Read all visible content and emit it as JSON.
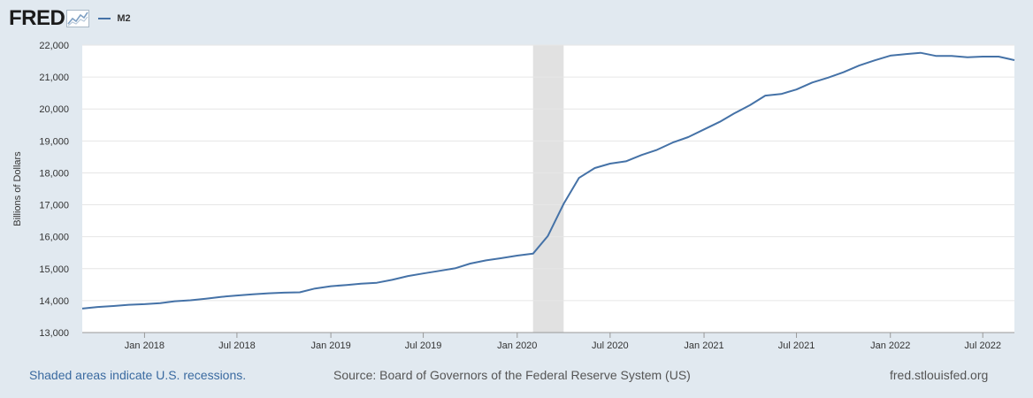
{
  "header": {
    "logo_text": "FRED",
    "brand_color": "#1b1b1b",
    "series_color": "#4572a7"
  },
  "footer": {
    "note": "Shaded areas indicate U.S. recessions.",
    "source": "Source: Board of Governors of the Federal Reserve System (US)",
    "site": "fred.stlouisfed.org"
  },
  "chart_data": {
    "type": "line",
    "ylabel": "Billions of Dollars",
    "xlabel": "",
    "ylim": [
      13000,
      22000
    ],
    "xlim": [
      "2017-09-01",
      "2022-09-01"
    ],
    "yticks": [
      13000,
      14000,
      15000,
      16000,
      17000,
      18000,
      19000,
      20000,
      21000,
      22000
    ],
    "ytick_labels": [
      "13,000",
      "14,000",
      "15,000",
      "16,000",
      "17,000",
      "18,000",
      "19,000",
      "20,000",
      "21,000",
      "22,000"
    ],
    "xticks": [
      "2018-01-01",
      "2018-07-01",
      "2019-01-01",
      "2019-07-01",
      "2020-01-01",
      "2020-07-01",
      "2021-01-01",
      "2021-07-01",
      "2022-01-01",
      "2022-07-01"
    ],
    "xtick_labels": [
      "Jan 2018",
      "Jul 2018",
      "Jan 2019",
      "Jul 2019",
      "Jan 2020",
      "Jul 2020",
      "Jan 2021",
      "Jul 2021",
      "Jan 2022",
      "Jul 2022"
    ],
    "grid": true,
    "legend": "top-left",
    "recessions": [
      {
        "start": "2020-02-01",
        "end": "2020-04-01"
      }
    ],
    "series": [
      {
        "name": "M2",
        "color": "#4572a7",
        "x": [
          "2017-09-01",
          "2017-10-01",
          "2017-11-01",
          "2017-12-01",
          "2018-01-01",
          "2018-02-01",
          "2018-03-01",
          "2018-04-01",
          "2018-05-01",
          "2018-06-01",
          "2018-07-01",
          "2018-08-01",
          "2018-09-01",
          "2018-10-01",
          "2018-11-01",
          "2018-12-01",
          "2019-01-01",
          "2019-02-01",
          "2019-03-01",
          "2019-04-01",
          "2019-05-01",
          "2019-06-01",
          "2019-07-01",
          "2019-08-01",
          "2019-09-01",
          "2019-10-01",
          "2019-11-01",
          "2019-12-01",
          "2020-01-01",
          "2020-02-01",
          "2020-03-01",
          "2020-04-01",
          "2020-05-01",
          "2020-06-01",
          "2020-07-01",
          "2020-08-01",
          "2020-09-01",
          "2020-10-01",
          "2020-11-01",
          "2020-12-01",
          "2021-01-01",
          "2021-02-01",
          "2021-03-01",
          "2021-04-01",
          "2021-05-01",
          "2021-06-01",
          "2021-07-01",
          "2021-08-01",
          "2021-09-01",
          "2021-10-01",
          "2021-11-01",
          "2021-12-01",
          "2022-01-01",
          "2022-02-01",
          "2022-03-01",
          "2022-04-01",
          "2022-05-01",
          "2022-06-01",
          "2022-07-01",
          "2022-08-01",
          "2022-09-01"
        ],
        "values": [
          13750,
          13800,
          13830,
          13870,
          13890,
          13920,
          13980,
          14010,
          14060,
          14120,
          14160,
          14200,
          14230,
          14250,
          14260,
          14380,
          14450,
          14490,
          14530,
          14560,
          14650,
          14770,
          14850,
          14930,
          15010,
          15160,
          15260,
          15330,
          15410,
          15470,
          16020,
          17030,
          17840,
          18150,
          18290,
          18360,
          18560,
          18720,
          18950,
          19120,
          19360,
          19600,
          19860,
          20120,
          20420,
          20470,
          20610,
          20830,
          20980,
          21150,
          21360,
          21520,
          21670,
          21720,
          21760,
          21660,
          21660,
          21620,
          21640,
          21640,
          21530
        ]
      }
    ]
  }
}
